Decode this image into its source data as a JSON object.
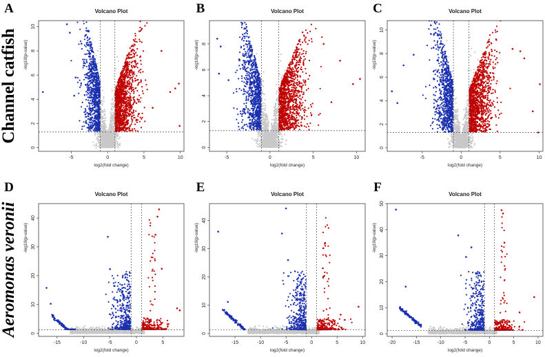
{
  "row_labels": [
    "Channel catfish",
    "Aeromonas veronii"
  ],
  "colors": {
    "down": "#1a2fb0",
    "up": "#c00000",
    "ns": "#c8c8c8",
    "threshold": "#444444"
  },
  "chart_data": [
    {
      "panel": "A",
      "type": "scatter",
      "title": "Volcano Plot",
      "xlabel": "log2(fold change)",
      "ylabel": "-log10(p-value)",
      "xlim": [
        -9.5,
        10.5
      ],
      "ylim": [
        -0.3,
        10.5
      ],
      "xticks": [
        -5,
        0,
        5,
        10
      ],
      "yticks": [
        0,
        2,
        4,
        6,
        8,
        10
      ],
      "fc_threshold": [
        -1,
        1
      ],
      "p_threshold": 1.3,
      "series": [
        {
          "group": "down",
          "points": [
            [
              -8.9,
              4.6
            ],
            [
              -5.6,
              10.2
            ],
            [
              -5.2,
              9.5
            ],
            [
              -4.4,
              5.8
            ],
            [
              -4.6,
              4.3
            ],
            [
              -3.6,
              8.6
            ]
          ]
        },
        {
          "group": "up",
          "points": [
            [
              9.9,
              1.8
            ],
            [
              9.8,
              5.3
            ],
            [
              9.3,
              4.9
            ],
            [
              7.4,
              8.0
            ],
            [
              6.2,
              3.3
            ],
            [
              8.6,
              4.6
            ]
          ]
        }
      ]
    },
    {
      "panel": "B",
      "type": "scatter",
      "title": "Volcano Plot",
      "xlabel": "log2(fold change)",
      "ylabel": "-log10(p-value)",
      "xlim": [
        -7,
        11
      ],
      "ylim": [
        -0.3,
        9.8
      ],
      "xticks": [
        -5,
        0,
        5,
        10
      ],
      "yticks": [
        0,
        2,
        4,
        6,
        8
      ],
      "fc_threshold": [
        -1,
        1
      ],
      "p_threshold": 1.3,
      "series": [
        {
          "group": "down",
          "points": [
            [
              -6.1,
              8.4
            ],
            [
              -5.7,
              7.8
            ],
            [
              -3.2,
              9.6
            ],
            [
              -5.9,
              5.7
            ],
            [
              -4.8,
              5.2
            ]
          ]
        },
        {
          "group": "up",
          "points": [
            [
              10.4,
              5.3
            ],
            [
              9.6,
              4.9
            ],
            [
              8.1,
              6.7
            ],
            [
              7.1,
              3.5
            ],
            [
              6.2,
              8.0
            ]
          ]
        }
      ]
    },
    {
      "panel": "C",
      "type": "scatter",
      "title": "Volcano Plot",
      "xlabel": "log2(fold change)",
      "ylabel": "-log10(p-value)",
      "xlim": [
        -9.5,
        10.5
      ],
      "ylim": [
        -0.3,
        10.8
      ],
      "xticks": [
        -5,
        0,
        5,
        10
      ],
      "yticks": [
        0,
        2,
        4,
        6,
        8,
        10
      ],
      "fc_threshold": [
        -1,
        1
      ],
      "p_threshold": 1.3,
      "series": [
        {
          "group": "down",
          "points": [
            [
              -8.9,
              4.8
            ],
            [
              -8.2,
              3.8
            ],
            [
              -3.9,
              10.4
            ],
            [
              -3.5,
              9.6
            ],
            [
              -6.1,
              7.9
            ],
            [
              -7.4,
              7.0
            ]
          ]
        },
        {
          "group": "up",
          "points": [
            [
              10.1,
              5.4
            ],
            [
              9.9,
              1.3
            ],
            [
              8.1,
              7.6
            ],
            [
              7.6,
              8.2
            ],
            [
              9.2,
              3.1
            ],
            [
              6.6,
              8.4
            ]
          ]
        }
      ]
    },
    {
      "panel": "D",
      "type": "scatter",
      "title": "Volcano Plot",
      "xlabel": "log2(fold change)",
      "ylabel": "-log10(p-value)",
      "xlim": [
        -18.5,
        9
      ],
      "ylim": [
        -1,
        45
      ],
      "xticks": [
        -15,
        -10,
        -5,
        0,
        5
      ],
      "yticks": [
        0,
        10,
        20,
        30,
        40
      ],
      "fc_threshold": [
        -1,
        1
      ],
      "p_threshold": 1.3,
      "series": [
        {
          "group": "down",
          "points": [
            [
              -17.0,
              15.8
            ],
            [
              -16.2,
              10.3
            ],
            [
              -5.4,
              33.5
            ],
            [
              -5.0,
              22.3
            ],
            [
              -4.2,
              16.5
            ]
          ]
        },
        {
          "group": "up",
          "points": [
            [
              4.3,
              43.0
            ],
            [
              4.0,
              40.5
            ],
            [
              3.6,
              34.2
            ],
            [
              4.8,
              22.4
            ],
            [
              7.7,
              8.7
            ],
            [
              8.2,
              8.0
            ]
          ]
        }
      ]
    },
    {
      "panel": "E",
      "type": "scatter",
      "title": "Volcano Plot",
      "xlabel": "log2(fold change)",
      "ylabel": "-log10(p-value)",
      "xlim": [
        -20,
        10.5
      ],
      "ylim": [
        -1,
        46
      ],
      "xticks": [
        -15,
        -10,
        -5,
        0,
        5,
        10
      ],
      "yticks": [
        0,
        10,
        20,
        30,
        40
      ],
      "fc_threshold": [
        -1,
        1
      ],
      "p_threshold": 1.3,
      "series": [
        {
          "group": "down",
          "points": [
            [
              -18.3,
              36.1
            ],
            [
              -16.4,
              11.2
            ],
            [
              -5.0,
              44.3
            ],
            [
              -5.8,
              35.4
            ],
            [
              -4.6,
              26.0
            ]
          ]
        },
        {
          "group": "up",
          "points": [
            [
              2.6,
              31.8
            ],
            [
              2.3,
              30.2
            ],
            [
              2.2,
              23.1
            ],
            [
              9.2,
              9.5
            ],
            [
              5.7,
              6.7
            ]
          ]
        }
      ]
    },
    {
      "panel": "F",
      "type": "scatter",
      "title": "Volcano Plot",
      "xlabel": "log2(fold change)",
      "ylabel": "-log10(p-value)",
      "xlim": [
        -21,
        11
      ],
      "ylim": [
        -1,
        50
      ],
      "xticks": [
        -20,
        -15,
        -10,
        -5,
        0,
        5,
        10
      ],
      "yticks": [
        0,
        10,
        20,
        30,
        40,
        50
      ],
      "fc_threshold": [
        -1,
        1
      ],
      "p_threshold": 1.3,
      "series": [
        {
          "group": "down",
          "points": [
            [
              -19.2,
              47.7
            ],
            [
              -17.2,
              18.1
            ],
            [
              -6.4,
              37.8
            ],
            [
              -3.7,
              33.2
            ],
            [
              -4.8,
              29.5
            ]
          ]
        },
        {
          "group": "up",
          "points": [
            [
              2.5,
              47.5
            ],
            [
              2.8,
              46.2
            ],
            [
              3.1,
              35.0
            ],
            [
              9.2,
              14.1
            ],
            [
              6.2,
              8.2
            ]
          ]
        }
      ]
    }
  ]
}
